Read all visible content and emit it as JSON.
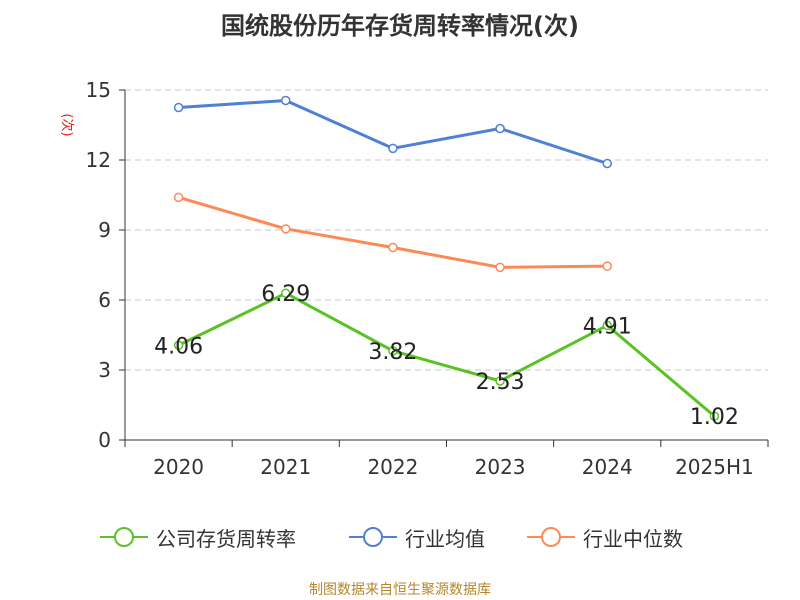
{
  "chart_data": {
    "type": "line",
    "title": "国统股份历年存货周转率情况(次)",
    "ylabel": "(次)",
    "categories": [
      "2020",
      "2021",
      "2022",
      "2023",
      "2024",
      "2025H1"
    ],
    "ylim": [
      0,
      15
    ],
    "yticks": [
      0,
      3,
      6,
      9,
      12,
      15
    ],
    "grid": true,
    "legend_position": "bottom",
    "series": [
      {
        "name": "公司存货周转率",
        "color": "#5ac224",
        "values": [
          4.06,
          6.29,
          3.82,
          2.53,
          4.91,
          1.02
        ],
        "labels": [
          "4.06",
          "6.29",
          "3.82",
          "2.53",
          "4.91",
          "1.02"
        ]
      },
      {
        "name": "行业均值",
        "color": "#4f7fd6",
        "values": [
          14.25,
          14.55,
          12.5,
          13.35,
          11.85,
          null
        ]
      },
      {
        "name": "行业中位数",
        "color": "#fb8a56",
        "values": [
          10.4,
          9.05,
          8.25,
          7.4,
          7.45,
          null
        ]
      }
    ]
  },
  "source": "制图数据来自恒生聚源数据库"
}
